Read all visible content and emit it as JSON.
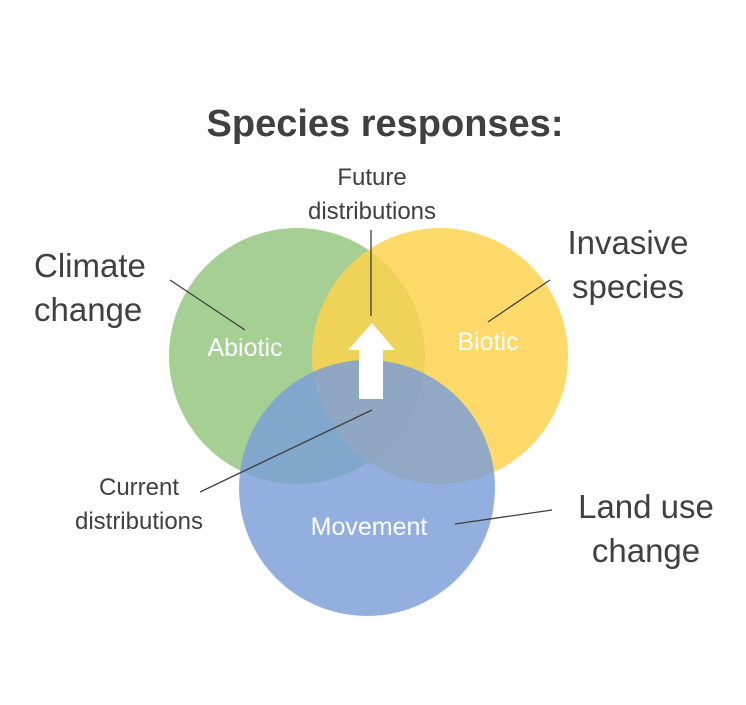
{
  "title": "Species responses:",
  "colors": {
    "abiotic": "#93c47d",
    "biotic": "#ffd24a",
    "movement": "#7a9ed9",
    "text": "#404040",
    "arrow": "#ffffff"
  },
  "circles": {
    "abiotic": "Abiotic",
    "biotic": "Biotic",
    "movement": "Movement"
  },
  "drivers": {
    "climate": [
      "Climate",
      "change"
    ],
    "invasive": [
      "Invasive",
      "species"
    ],
    "landuse": [
      "Land use",
      "change"
    ]
  },
  "distributions": {
    "future": [
      "Future",
      "distributions"
    ],
    "current": [
      "Current",
      "distributions"
    ]
  }
}
